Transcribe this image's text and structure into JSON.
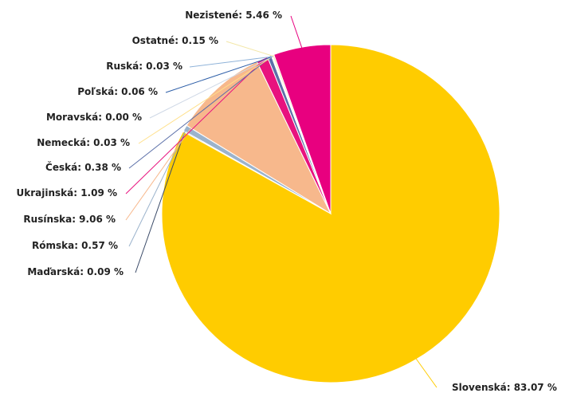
{
  "chart_data": {
    "type": "pie",
    "title": "",
    "slices": [
      {
        "label": "Slovenská",
        "value": 83.07,
        "display": "Slovenská: 83.07 %",
        "color": "#ffcc00"
      },
      {
        "label": "Maďarská",
        "value": 0.09,
        "display": "Maďarská: 0.09 %",
        "color": "#3a4a68"
      },
      {
        "label": "Rómska",
        "value": 0.57,
        "display": "Rómska: 0.57 %",
        "color": "#9bb3cc"
      },
      {
        "label": "Rusínska",
        "value": 9.06,
        "display": "Rusínska: 9.06 %",
        "color": "#f7b88c"
      },
      {
        "label": "Ukrajinská",
        "value": 1.09,
        "display": "Ukrajinská: 1.09 %",
        "color": "#e8127e"
      },
      {
        "label": "Česká",
        "value": 0.38,
        "display": "Česká: 0.38 %",
        "color": "#5b6fa8"
      },
      {
        "label": "Nemecká",
        "value": 0.03,
        "display": "Nemecká: 0.03 %",
        "color": "#ffe08a"
      },
      {
        "label": "Moravská",
        "value": 0.0,
        "display": "Moravská: 0.00 %",
        "color": "#cfd8e6"
      },
      {
        "label": "Poľská",
        "value": 0.06,
        "display": "Poľská: 0.06 %",
        "color": "#2e5fa8"
      },
      {
        "label": "Ruská",
        "value": 0.03,
        "display": "Ruská: 0.03 %",
        "color": "#8fb3d9"
      },
      {
        "label": "Ostatné",
        "value": 0.15,
        "display": "Ostatné: 0.15 %",
        "color": "#f3e7a8"
      },
      {
        "label": "Nezistené",
        "value": 5.46,
        "display": "Nezistené: 5.46 %",
        "color": "#e8007f"
      }
    ]
  }
}
